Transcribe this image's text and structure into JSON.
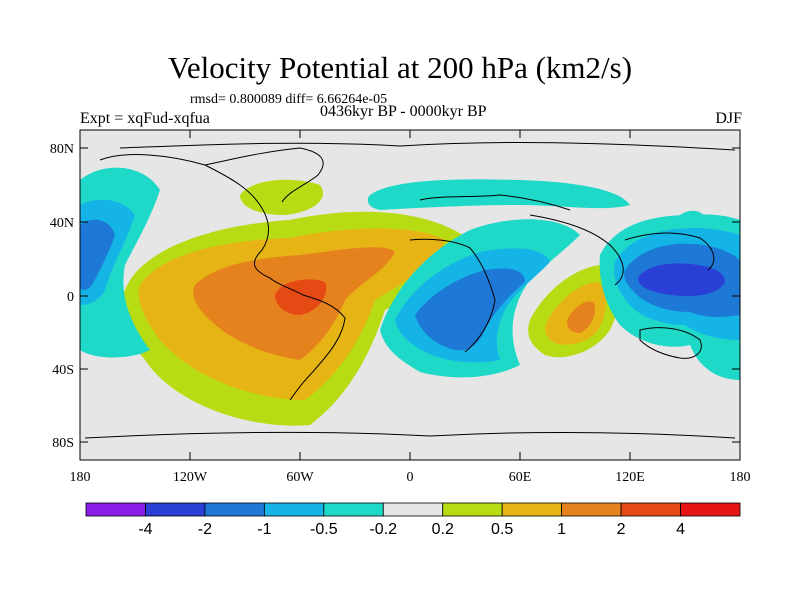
{
  "title": "Velocity Potential at 200 hPa (km2/s)",
  "stats": "rmsd= 0.800089 diff= 6.66264e-05",
  "experiment": "Expt = xqFud-xqfua",
  "period": "0436kyr BP - 0000kyr BP",
  "season": "DJF",
  "lon_ticks": [
    "180",
    "120W",
    "60W",
    "0",
    "60E",
    "120E",
    "180"
  ],
  "lat_ticks": [
    "80N",
    "40N",
    "0",
    "40S",
    "80S"
  ],
  "colorbar": {
    "labels": [
      "-4",
      "-2",
      "-1",
      "-0.5",
      "-0.2",
      "0.2",
      "0.5",
      "1",
      "2",
      "4"
    ],
    "colors": [
      "#8a1ee6",
      "#2a3fd6",
      "#1e78d6",
      "#14b4e6",
      "#1ed8c8",
      "#e6e6e6",
      "#b8dc14",
      "#e6b414",
      "#e6821e",
      "#e64a14",
      "#e61414"
    ]
  },
  "palette": {
    "neg4": "#2a3fd6",
    "neg2": "#1e78d6",
    "neg1": "#14b4e6",
    "neg05": "#1ed8c8",
    "neutral": "#e6e6e6",
    "pos02": "#b8dc14",
    "pos05": "#e6b414",
    "pos1": "#e6821e",
    "pos2": "#e64a14"
  }
}
